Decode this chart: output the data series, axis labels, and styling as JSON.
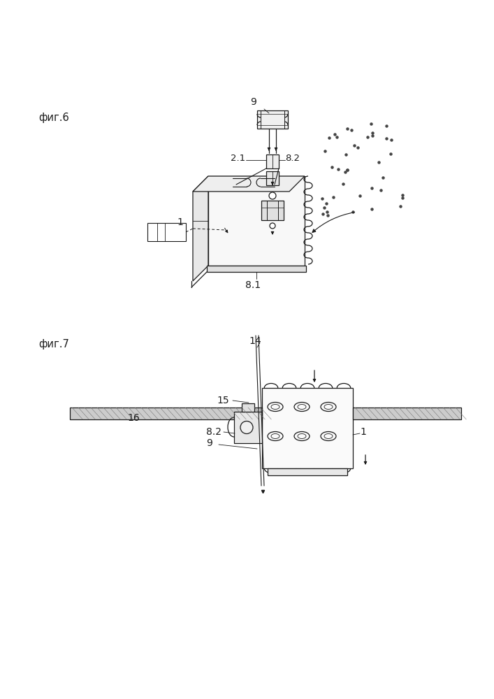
{
  "bg_color": "#ffffff",
  "lc": "#1a1a1a",
  "fig6_label": "фиг.6",
  "fig7_label": "фиг.7",
  "lbl_9": "9",
  "lbl_2_1": "2.1",
  "lbl_8_2": "8.2",
  "lbl_1_fig6": "1",
  "lbl_8_1": "8.1",
  "lbl_14": "14",
  "lbl_15": "15",
  "lbl_16": "16",
  "lbl_8_2_f7": "8.2",
  "lbl_9_f7": "9",
  "lbl_1_f7": "1"
}
